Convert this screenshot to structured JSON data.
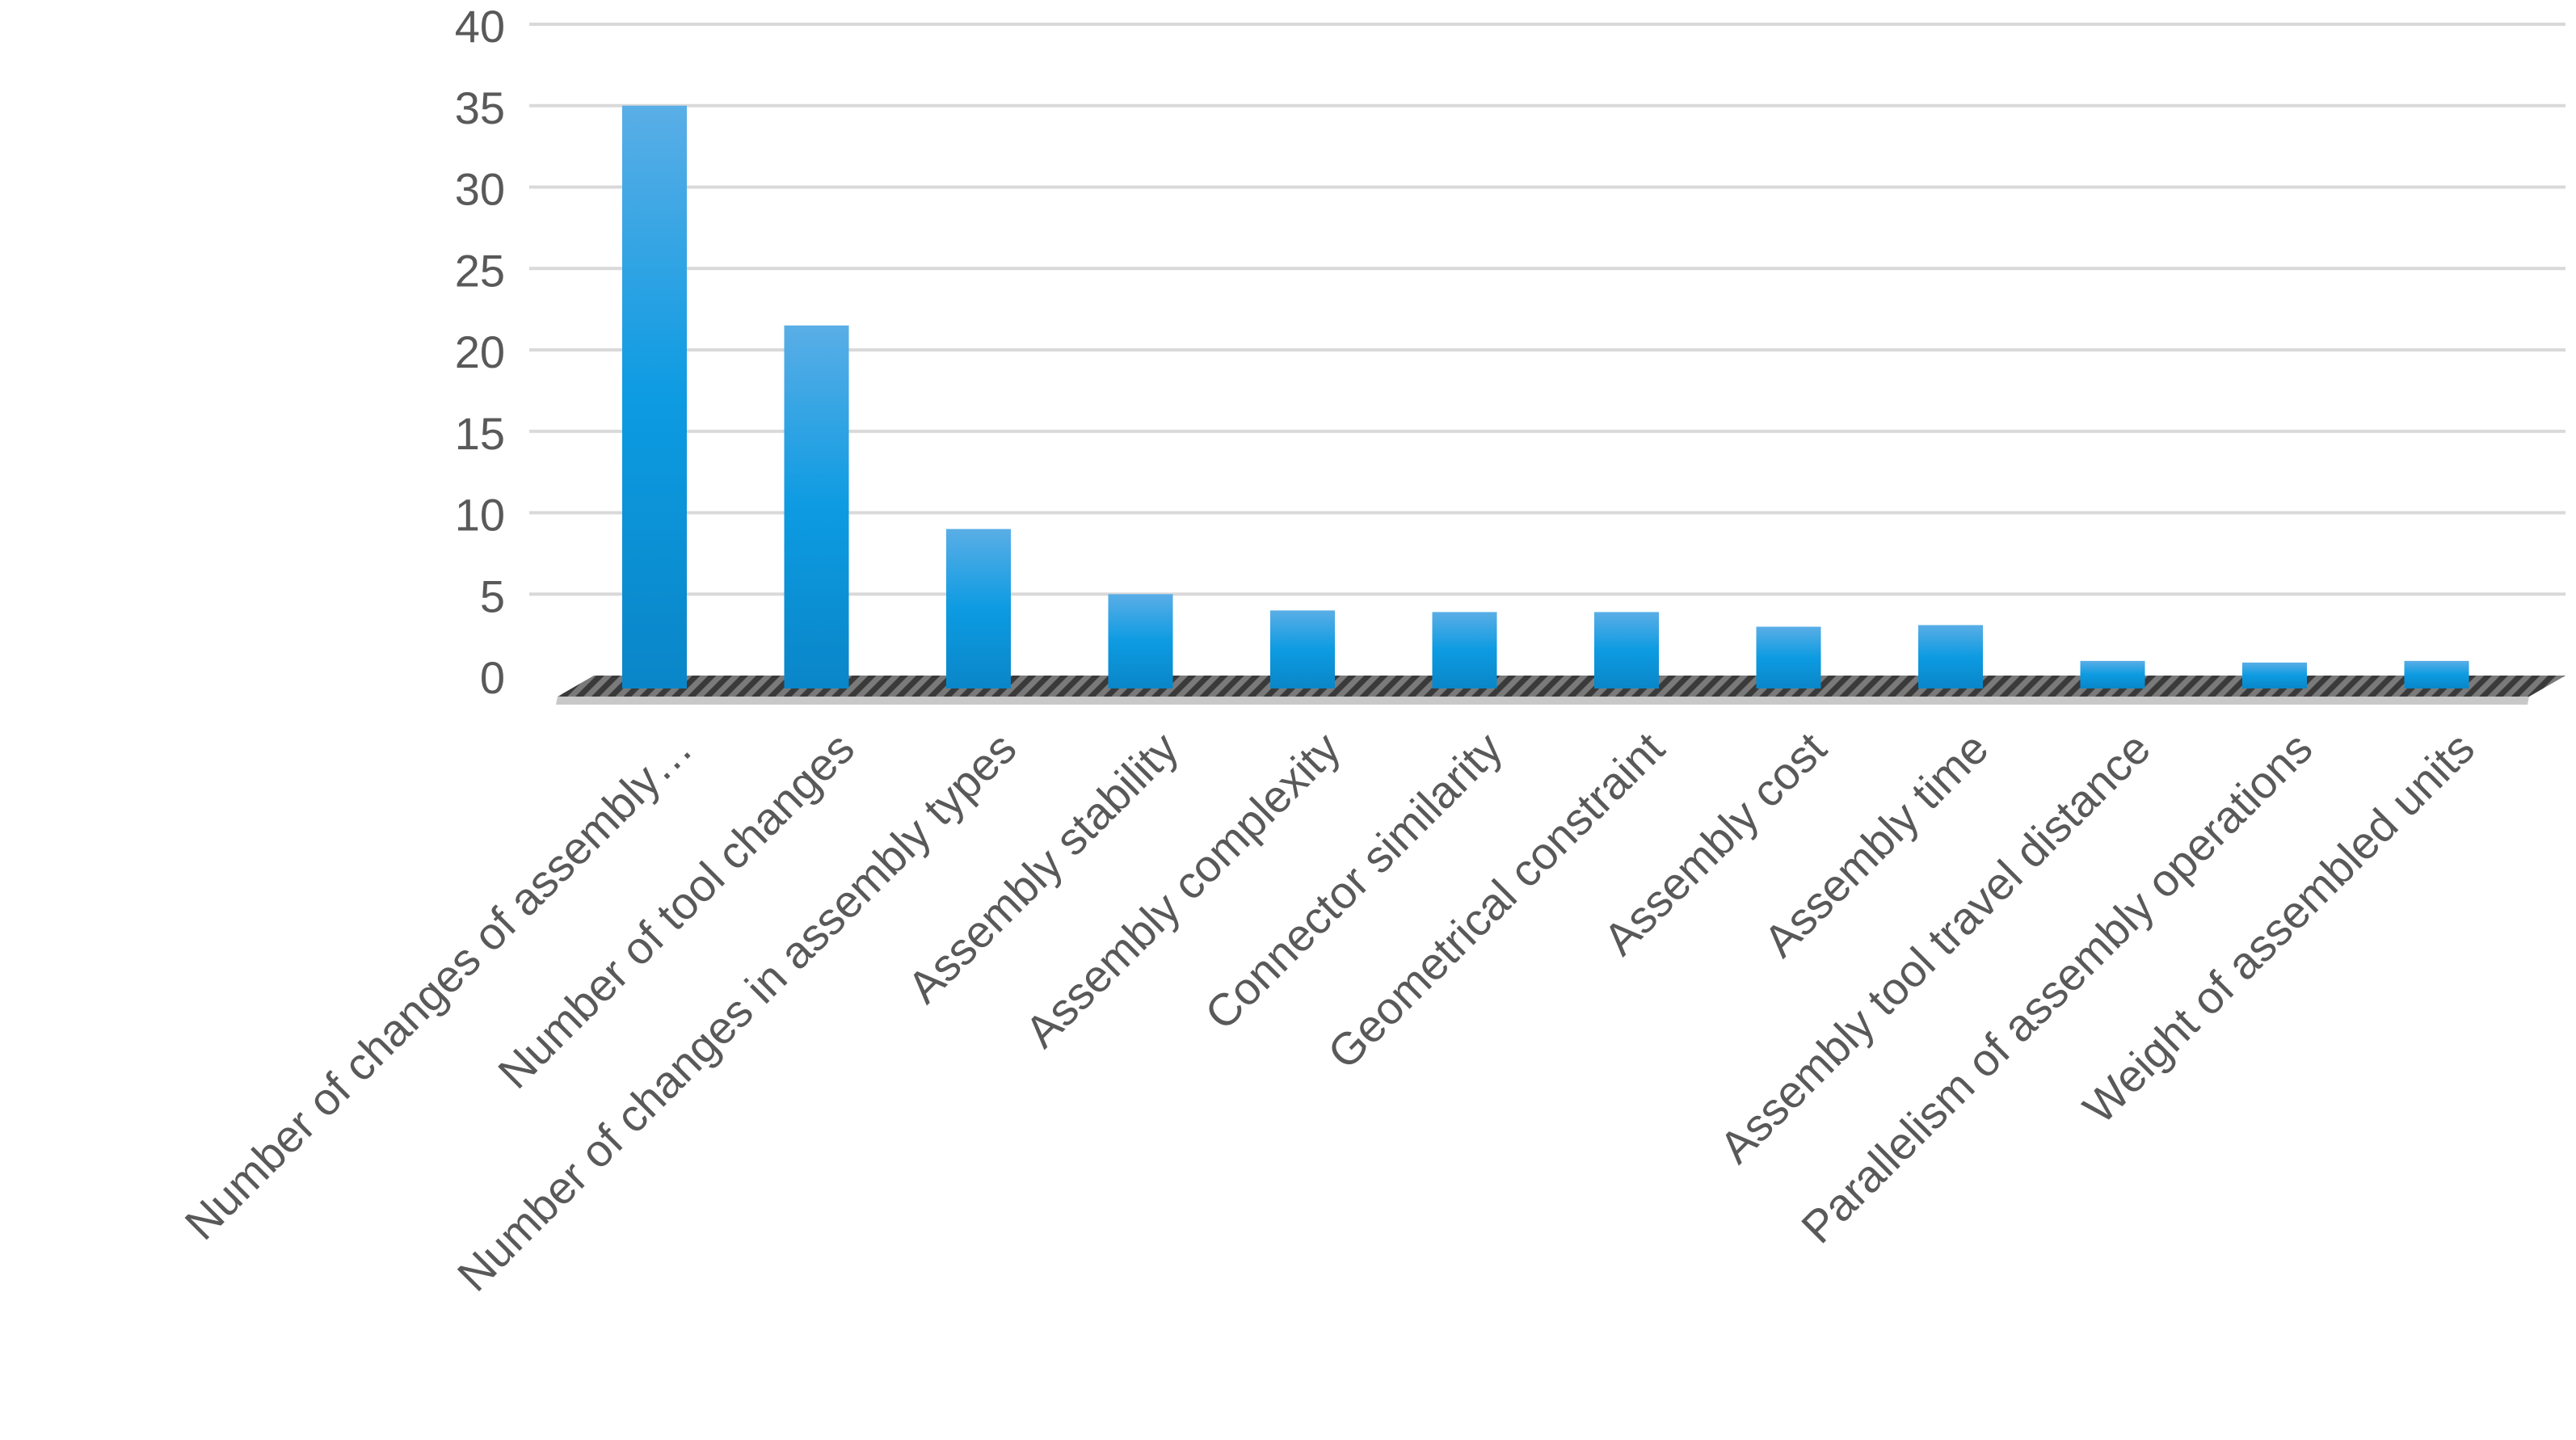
{
  "chart_data": {
    "type": "bar",
    "title": "",
    "xlabel": "",
    "ylabel": "",
    "ylim": [
      0,
      40
    ],
    "yticks": [
      0,
      5,
      10,
      15,
      20,
      25,
      30,
      35,
      40
    ],
    "grid": true,
    "categories": [
      "Number of changes of assembly…",
      "Number of tool changes",
      "Number of changes in assembly types",
      "Assembly stability",
      "Assembly complexity",
      "Connector similarity",
      "Geometrical constraint",
      "Assembly cost",
      "Assembly time",
      "Assembly tool travel distance",
      "Parallelism of assembly operations",
      "Weight of assembled units"
    ],
    "series": [
      {
        "values": [
          35,
          21.5,
          9,
          5,
          4,
          3.9,
          3.9,
          3,
          3.1,
          0.9,
          0.8,
          0.9
        ]
      }
    ],
    "colors": {
      "bar_top": "#5aaee6",
      "bar_mid": "#0d9be2",
      "bar_bottom": "#0a86c8",
      "grid": "#d9d9d9",
      "text": "#595959"
    }
  }
}
